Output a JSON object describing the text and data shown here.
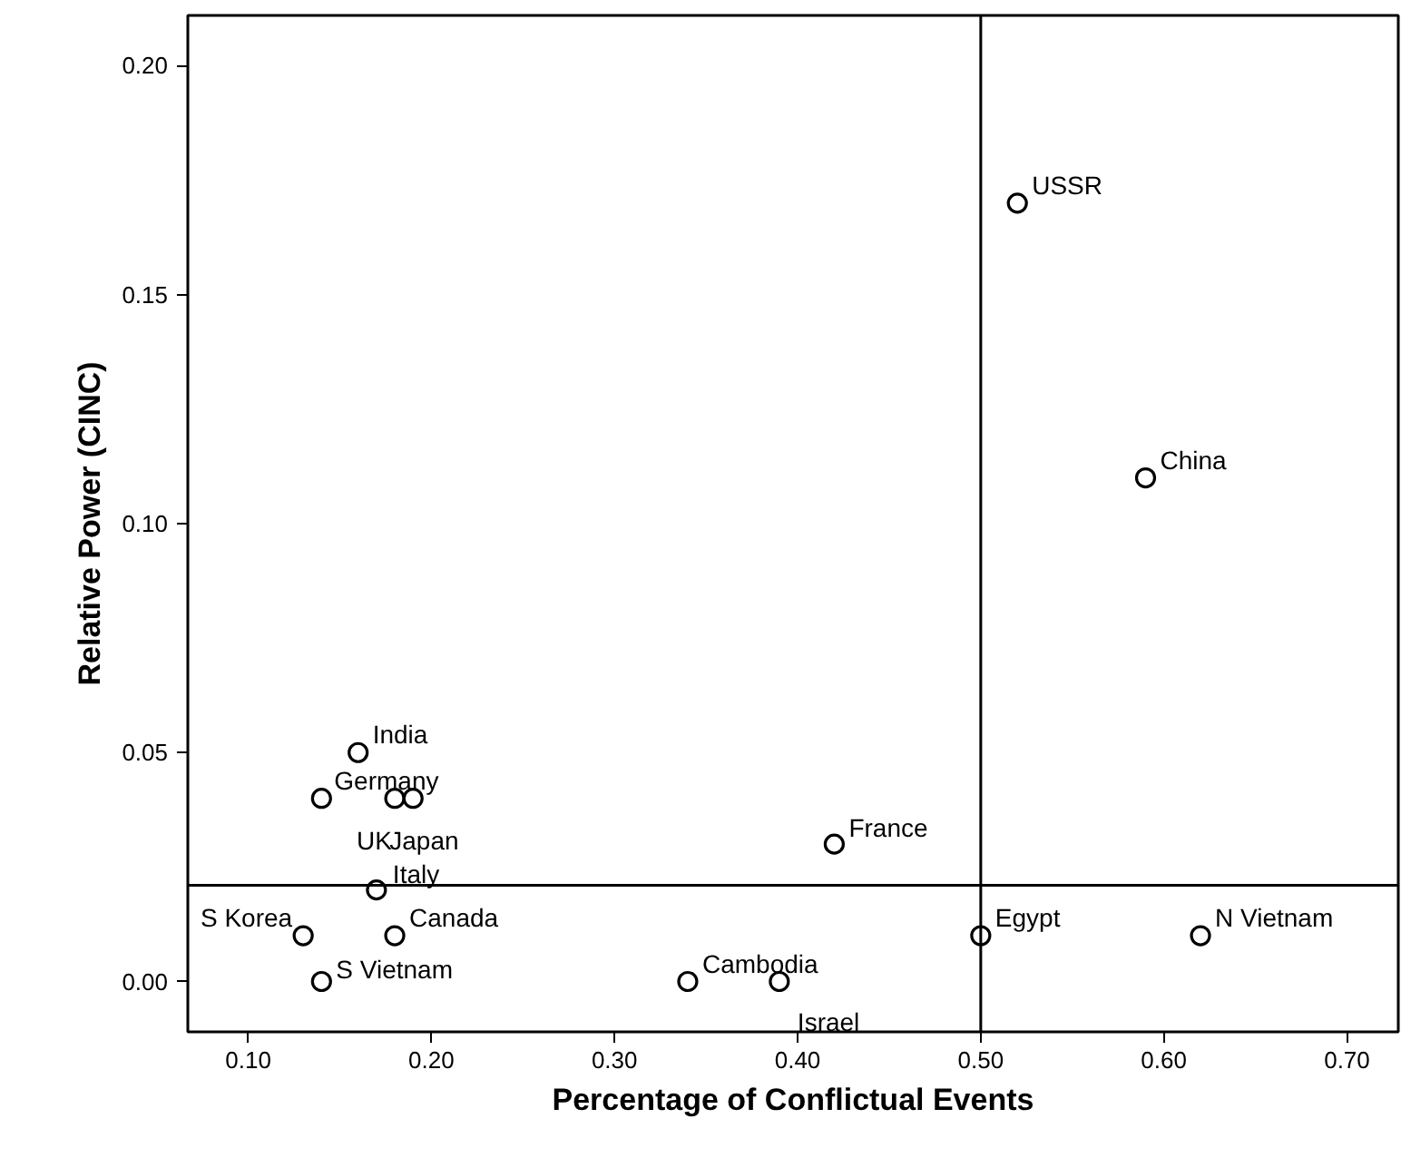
{
  "chart_data": {
    "type": "scatter",
    "xlabel": "Percentage of Conflictual Events",
    "ylabel": "Relative Power (CINC)",
    "x": [
      0.52,
      0.59,
      0.16,
      0.14,
      0.18,
      0.19,
      0.42,
      0.17,
      0.13,
      0.18,
      0.14,
      0.34,
      0.39,
      0.5,
      0.62
    ],
    "series": [
      {
        "color": "#000000",
        "values": [
          0.17,
          0.11,
          0.05,
          0.04,
          0.04,
          0.04,
          0.03,
          0.02,
          0.01,
          0.01,
          0.0,
          0.0,
          0.0,
          0.01,
          0.01
        ]
      }
    ],
    "marker": "circle",
    "xlim": [
      0.067,
      0.728
    ],
    "ylim": [
      -0.011,
      0.211
    ],
    "xticks": [
      {
        "value": 0.1,
        "label": "0.10"
      },
      {
        "value": 0.2,
        "label": "0.20"
      },
      {
        "value": 0.3,
        "label": "0.30"
      },
      {
        "value": 0.4,
        "label": "0.40"
      },
      {
        "value": 0.5,
        "label": "0.50"
      },
      {
        "value": 0.6,
        "label": "0.60"
      },
      {
        "value": 0.7,
        "label": "0.70"
      }
    ],
    "yticks": [
      {
        "value": 0.0,
        "label": "0.00"
      },
      {
        "value": 0.05,
        "label": "0.05"
      },
      {
        "value": 0.1,
        "label": "0.10"
      },
      {
        "value": 0.15,
        "label": "0.15"
      },
      {
        "value": 0.2,
        "label": "0.20"
      }
    ],
    "ref_lines": [
      {
        "axis": "x",
        "value": 0.5,
        "color": "#000000"
      },
      {
        "axis": "y",
        "value": 0.021,
        "color": "#000000"
      }
    ],
    "grid": false,
    "annotations": [
      {
        "text": "USSR",
        "x": 0.52,
        "y": 0.17
      },
      {
        "text": "China",
        "x": 0.59,
        "y": 0.11
      },
      {
        "text": "India",
        "x": 0.16,
        "y": 0.05
      },
      {
        "text": "Germany",
        "x": 0.14,
        "y": 0.04
      },
      {
        "text": "UK",
        "x": 0.18,
        "y": 0.04
      },
      {
        "text": "Japan",
        "x": 0.19,
        "y": 0.04
      },
      {
        "text": "France",
        "x": 0.42,
        "y": 0.03
      },
      {
        "text": "Italy",
        "x": 0.17,
        "y": 0.02
      },
      {
        "text": "S Korea",
        "x": 0.13,
        "y": 0.01
      },
      {
        "text": "Canada",
        "x": 0.18,
        "y": 0.01
      },
      {
        "text": "S Vietnam",
        "x": 0.14,
        "y": 0.0
      },
      {
        "text": "Cambodia",
        "x": 0.34,
        "y": 0.0
      },
      {
        "text": "Israel",
        "x": 0.39,
        "y": 0.0
      },
      {
        "text": "Egypt",
        "x": 0.5,
        "y": 0.01
      },
      {
        "text": "N Vietnam",
        "x": 0.62,
        "y": 0.01
      }
    ]
  }
}
